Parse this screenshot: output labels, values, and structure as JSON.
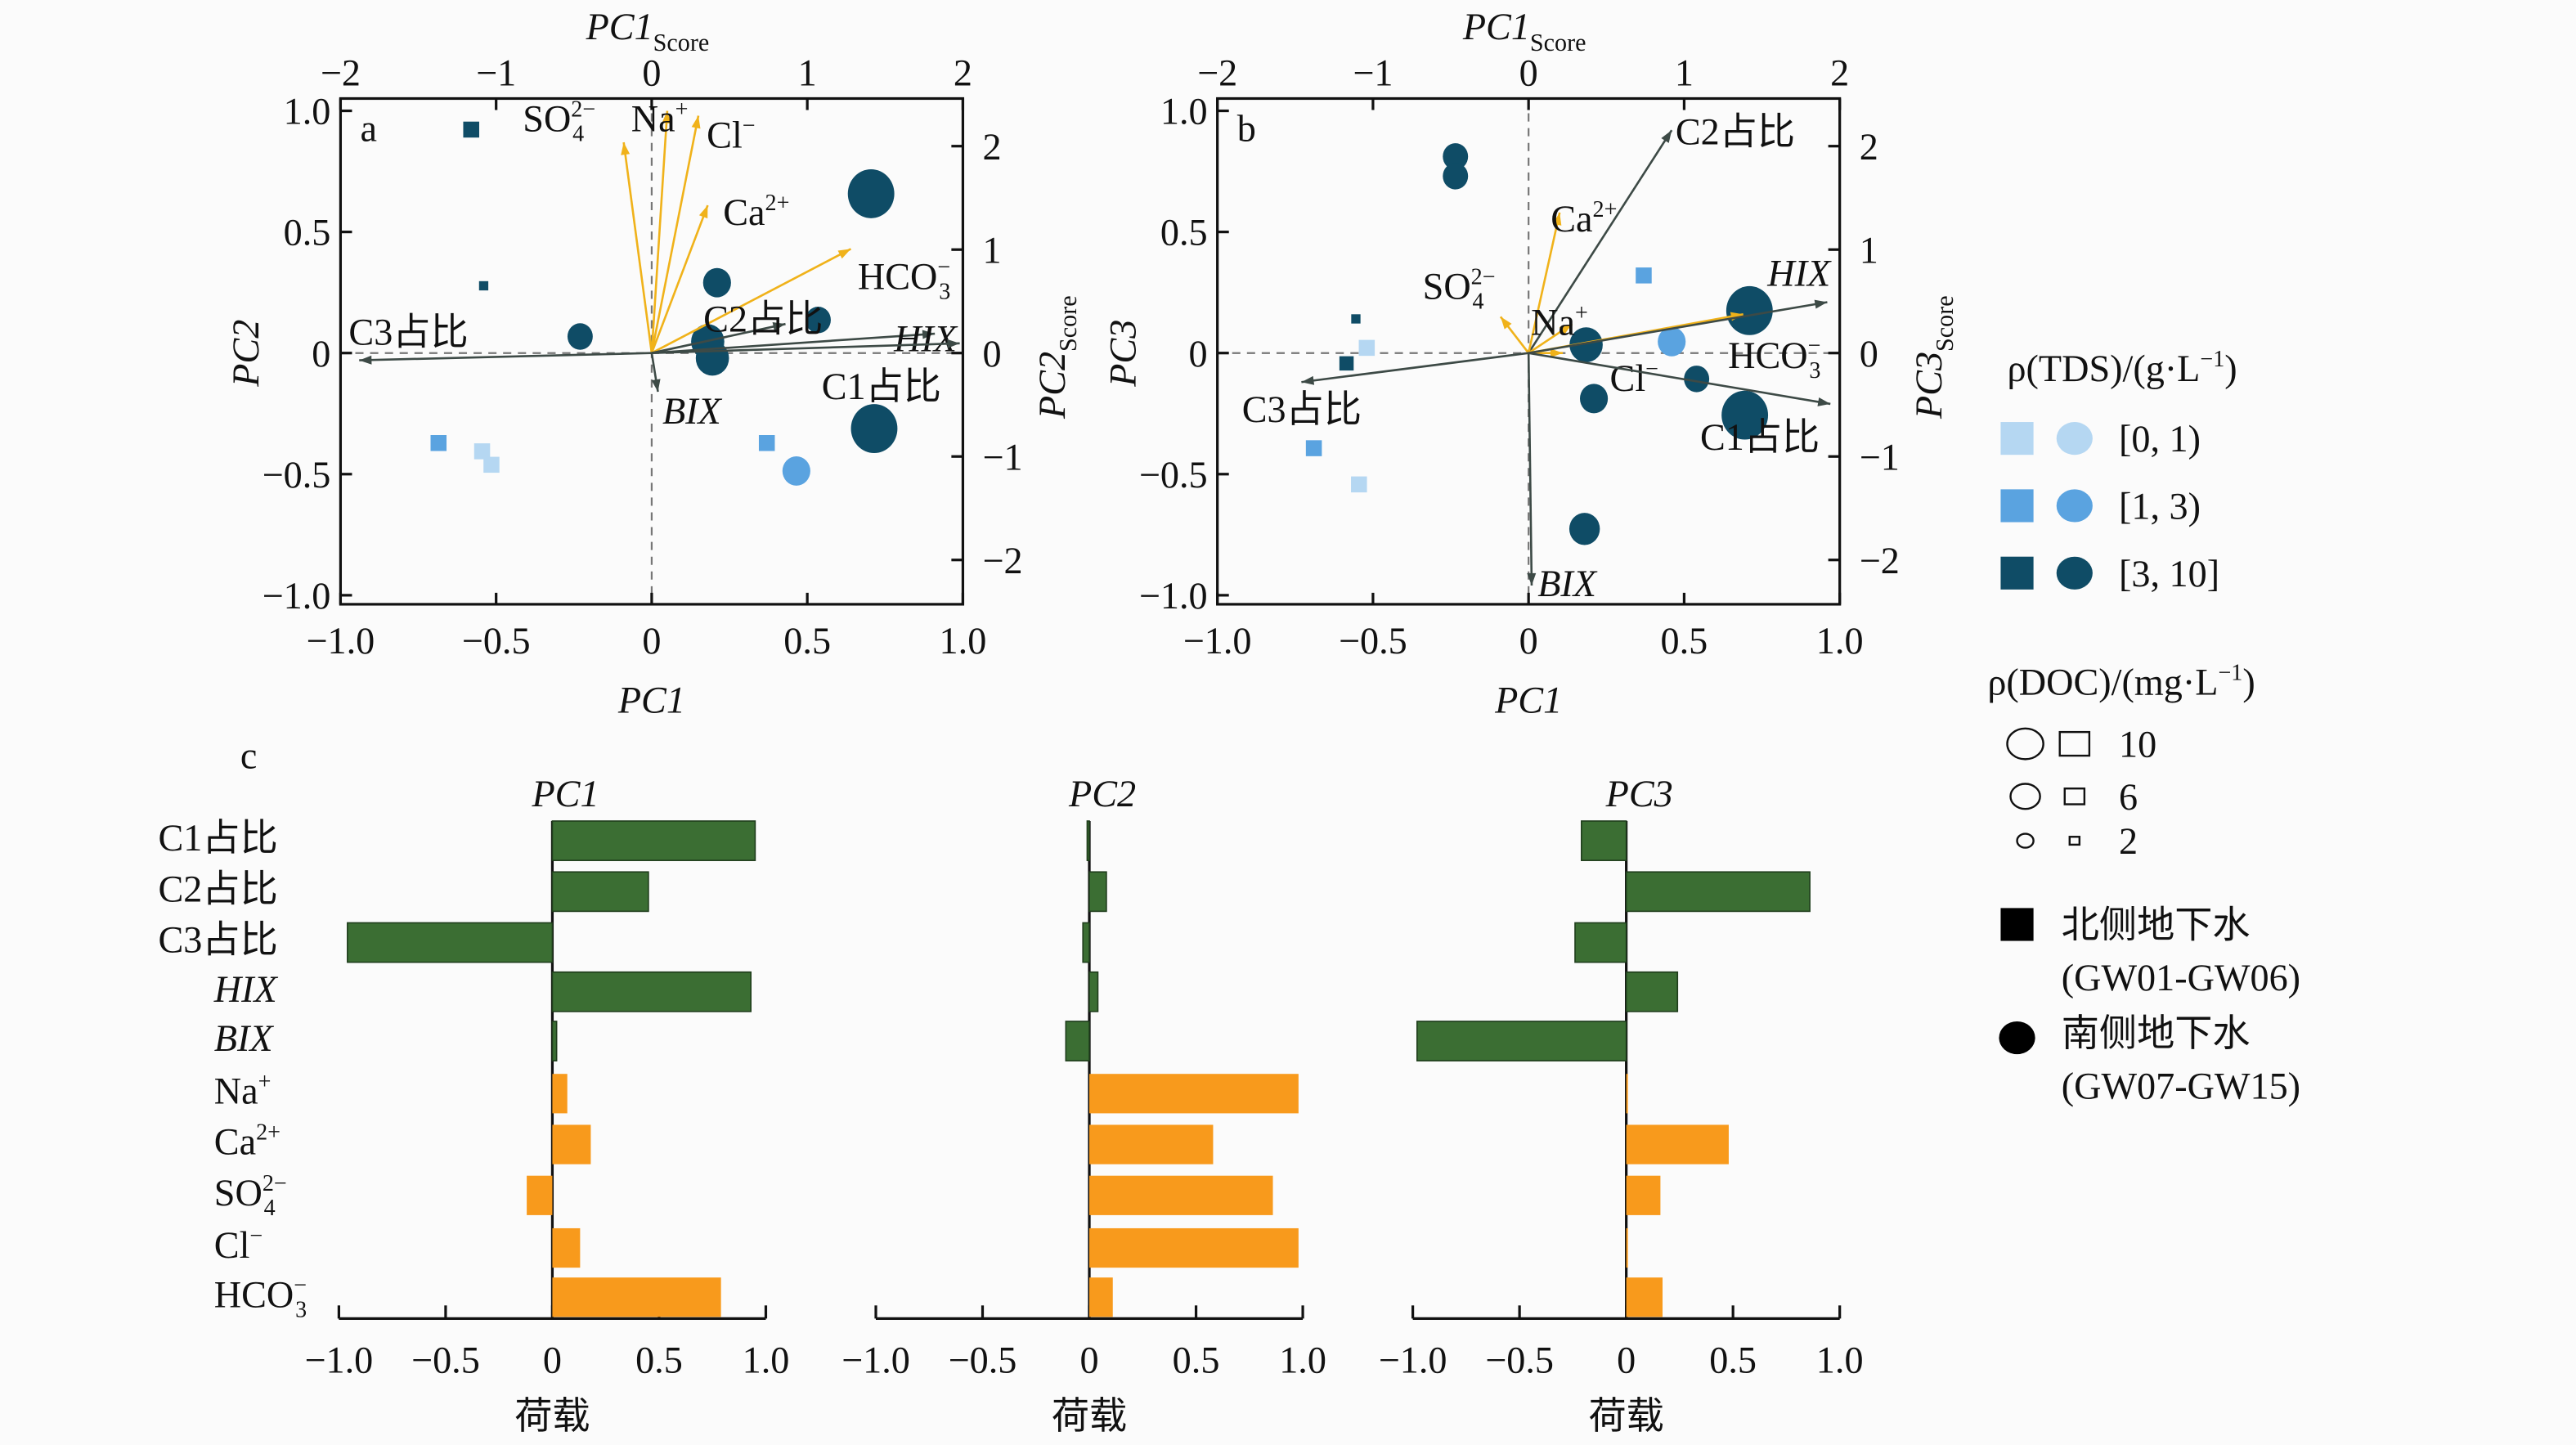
{
  "chart_data": [
    {
      "type": "scatter",
      "panel_label": "a",
      "xlabel": "PC1",
      "ylabel": "PC2",
      "top_label": {
        "base": "PC1",
        "sub": "Score"
      },
      "right_label": {
        "base": "PC2",
        "sub": "Score"
      },
      "xlim": [
        -1,
        1
      ],
      "ylim": [
        -1,
        1
      ],
      "score_xlim": [
        -2,
        2
      ],
      "score_ylim": [
        -2.34,
        2.34
      ],
      "x_ticks": [
        "−1.0",
        "−0.5",
        "0",
        "0.5",
        "1.0"
      ],
      "y_ticks": [
        "1.0",
        "0.5",
        "0",
        "−0.5",
        "−1.0"
      ],
      "top_ticks": [
        "−2",
        "−1",
        "0",
        "1",
        "2"
      ],
      "right_ticks": [
        "2",
        "1",
        "0",
        "−1",
        "−2"
      ],
      "loadings": [
        {
          "label": {
            "base": "SO",
            "sub": "4",
            "sup": "2−"
          },
          "x": -0.09,
          "y": 0.87,
          "group": "ion"
        },
        {
          "label": {
            "base": "Na",
            "sup": "+"
          },
          "x": 0.05,
          "y": 1.0,
          "group": "ion"
        },
        {
          "label": {
            "base": "Cl",
            "sup": "−"
          },
          "x": 0.15,
          "y": 0.98,
          "group": "ion"
        },
        {
          "label": {
            "base": "Ca",
            "sup": "2+"
          },
          "x": 0.18,
          "y": 0.61,
          "group": "ion"
        },
        {
          "label": {
            "base": "HCO",
            "sub": "3",
            "sup": "−"
          },
          "x": 0.64,
          "y": 0.43,
          "group": "ion"
        },
        {
          "label": {
            "base": "C2占比"
          },
          "x": 0.43,
          "y": 0.12,
          "group": "dom"
        },
        {
          "label": {
            "base": "HIX",
            "italic": true
          },
          "x": 0.91,
          "y": 0.08,
          "group": "dom"
        },
        {
          "label": {
            "base": "C1占比"
          },
          "x": 0.99,
          "y": 0.04,
          "group": "dom"
        },
        {
          "label": {
            "base": "C3占比"
          },
          "x": -0.94,
          "y": -0.03,
          "group": "dom"
        },
        {
          "label": {
            "base": "BIX",
            "italic": true
          },
          "x": 0.02,
          "y": -0.16,
          "group": "dom"
        }
      ],
      "scores": [
        {
          "x": -1.16,
          "y": 2.16,
          "tds": "[3, 10]",
          "doc": 6,
          "site": "north"
        },
        {
          "x": -1.08,
          "y": 0.65,
          "tds": "[3, 10]",
          "doc": 2,
          "site": "north"
        },
        {
          "x": -1.37,
          "y": -0.87,
          "tds": "[1, 3)",
          "doc": 6,
          "site": "north"
        },
        {
          "x": -1.09,
          "y": -0.95,
          "tds": "[0, 1)",
          "doc": 6,
          "site": "north"
        },
        {
          "x": -1.03,
          "y": -1.08,
          "tds": "[0, 1)",
          "doc": 6,
          "site": "north"
        },
        {
          "x": 0.74,
          "y": -0.87,
          "tds": "[1, 3)",
          "doc": 6,
          "site": "north"
        },
        {
          "x": -0.46,
          "y": 0.16,
          "tds": "[3, 10]",
          "doc": 6,
          "site": "south"
        },
        {
          "x": 0.93,
          "y": -1.14,
          "tds": "[1, 3)",
          "doc": 7,
          "site": "south"
        },
        {
          "x": 1.41,
          "y": 1.54,
          "tds": "[3, 10]",
          "doc": 14,
          "site": "south"
        },
        {
          "x": 0.42,
          "y": 0.68,
          "tds": "[3, 10]",
          "doc": 7,
          "site": "south"
        },
        {
          "x": 0.36,
          "y": 0.11,
          "tds": "[3, 10]",
          "doc": 9,
          "site": "south"
        },
        {
          "x": 0.39,
          "y": -0.05,
          "tds": "[3, 10]",
          "doc": 9,
          "site": "south"
        },
        {
          "x": 1.07,
          "y": 0.32,
          "tds": "[3, 10]",
          "doc": 6,
          "site": "south"
        },
        {
          "x": 1.43,
          "y": -0.73,
          "tds": "[3, 10]",
          "doc": 14,
          "site": "south"
        }
      ]
    },
    {
      "type": "scatter",
      "panel_label": "b",
      "xlabel": "PC1",
      "ylabel": "PC3",
      "top_label": {
        "base": "PC1",
        "sub": "Score"
      },
      "right_label": {
        "base": "PC3",
        "sub": "Score"
      },
      "xlim": [
        -1,
        1
      ],
      "ylim": [
        -1,
        1
      ],
      "score_xlim": [
        -2,
        2
      ],
      "score_ylim": [
        -2.34,
        2.34
      ],
      "x_ticks": [
        "−1.0",
        "−0.5",
        "0",
        "0.5",
        "1.0"
      ],
      "y_ticks": [
        "1.0",
        "0.5",
        "0",
        "−0.5",
        "−1.0"
      ],
      "top_ticks": [
        "−2",
        "−1",
        "0",
        "1",
        "2"
      ],
      "right_ticks": [
        "2",
        "1",
        "0",
        "−1",
        "−2"
      ],
      "loadings": [
        {
          "label": {
            "base": "C2占比"
          },
          "x": 0.46,
          "y": 0.92,
          "group": "dom"
        },
        {
          "label": {
            "base": "Ca",
            "sup": "2+"
          },
          "x": 0.1,
          "y": 0.58,
          "group": "ion"
        },
        {
          "label": {
            "base": "SO",
            "sub": "4",
            "sup": "2−"
          },
          "x": -0.09,
          "y": 0.15,
          "group": "ion"
        },
        {
          "label": {
            "base": "Na",
            "sup": "+"
          },
          "x": 0.14,
          "y": 0.12,
          "group": "ion"
        },
        {
          "label": {
            "base": "Cl",
            "sup": "−"
          },
          "x": 0.11,
          "y": 0.0,
          "group": "ion"
        },
        {
          "label": {
            "base": "HCO",
            "sub": "3",
            "sup": "−"
          },
          "x": 0.69,
          "y": 0.16,
          "group": "ion"
        },
        {
          "label": {
            "base": "HIX",
            "italic": true
          },
          "x": 0.96,
          "y": 0.21,
          "group": "dom"
        },
        {
          "label": {
            "base": "C1占比"
          },
          "x": 0.97,
          "y": -0.21,
          "group": "dom"
        },
        {
          "label": {
            "base": "C3占比"
          },
          "x": -0.73,
          "y": -0.12,
          "group": "dom"
        },
        {
          "label": {
            "base": "BIX",
            "italic": true
          },
          "x": 0.01,
          "y": -0.96,
          "group": "dom"
        }
      ],
      "scores": [
        {
          "x": -0.47,
          "y": 1.9,
          "tds": "[3, 10]",
          "doc": 6,
          "site": "south"
        },
        {
          "x": -0.47,
          "y": 1.71,
          "tds": "[3, 10]",
          "doc": 6,
          "site": "south"
        },
        {
          "x": -1.04,
          "y": 0.05,
          "tds": "[0, 1)",
          "doc": 6,
          "site": "north"
        },
        {
          "x": -1.11,
          "y": 0.33,
          "tds": "[3, 10]",
          "doc": 2,
          "site": "north"
        },
        {
          "x": -1.17,
          "y": -0.1,
          "tds": "[3, 10]",
          "doc": 5,
          "site": "north"
        },
        {
          "x": -1.38,
          "y": -0.92,
          "tds": "[1, 3)",
          "doc": 6,
          "site": "north"
        },
        {
          "x": -1.09,
          "y": -1.27,
          "tds": "[0, 1)",
          "doc": 6,
          "site": "north"
        },
        {
          "x": 0.74,
          "y": 0.75,
          "tds": "[1, 3)",
          "doc": 6,
          "site": "north"
        },
        {
          "x": 1.42,
          "y": 0.41,
          "tds": "[3, 10]",
          "doc": 14,
          "site": "south"
        },
        {
          "x": 0.92,
          "y": 0.11,
          "tds": "[1, 3)",
          "doc": 7,
          "site": "south"
        },
        {
          "x": 0.37,
          "y": 0.08,
          "tds": "[3, 10]",
          "doc": 9,
          "site": "south"
        },
        {
          "x": 0.42,
          "y": -0.44,
          "tds": "[3, 10]",
          "doc": 7,
          "site": "south"
        },
        {
          "x": 1.08,
          "y": -0.25,
          "tds": "[3, 10]",
          "doc": 6,
          "site": "south"
        },
        {
          "x": 1.39,
          "y": -0.6,
          "tds": "[3, 10]",
          "doc": 14,
          "site": "south"
        },
        {
          "x": 0.36,
          "y": -1.7,
          "tds": "[3, 10]",
          "doc": 8,
          "site": "south"
        }
      ]
    },
    {
      "type": "bar",
      "orientation": "horizontal",
      "panel_label": "c",
      "xlabel": "荷载",
      "xlim": [
        -1,
        1
      ],
      "x_ticks": [
        "−1.0",
        "−0.5",
        "0",
        "0.5",
        "1.0"
      ],
      "categories": [
        {
          "base": "C1占比",
          "group": "dom"
        },
        {
          "base": "C2占比",
          "group": "dom"
        },
        {
          "base": "C3占比",
          "group": "dom"
        },
        {
          "base": "HIX",
          "italic": true,
          "group": "dom"
        },
        {
          "base": "BIX",
          "italic": true,
          "group": "dom"
        },
        {
          "base": "Na",
          "sup": "+",
          "group": "ion"
        },
        {
          "base": "Ca",
          "sup": "2+",
          "group": "ion"
        },
        {
          "base": "SO",
          "sub": "4",
          "sup": "2−",
          "group": "ion"
        },
        {
          "base": "Cl",
          "sup": "−",
          "group": "ion"
        },
        {
          "base": "HCO",
          "sub": "3",
          "sup": "−",
          "group": "ion"
        }
      ],
      "series": [
        {
          "name": "PC1",
          "values": [
            0.95,
            0.45,
            -0.96,
            0.93,
            0.02,
            0.07,
            0.18,
            -0.12,
            0.13,
            0.79
          ]
        },
        {
          "name": "PC2",
          "values": [
            -0.01,
            0.08,
            -0.03,
            0.04,
            -0.11,
            0.98,
            0.58,
            0.86,
            0.98,
            0.11
          ]
        },
        {
          "name": "PC3",
          "values": [
            -0.21,
            0.86,
            -0.24,
            0.24,
            -0.98,
            0.0,
            0.48,
            0.16,
            0.0,
            0.17
          ]
        }
      ]
    }
  ],
  "colors": {
    "tds": {
      "[0, 1)": "#b5d7f2",
      "[1, 3)": "#5aa3e0",
      "[3, 10]": "#0f4c66"
    },
    "dom_bar": "#3b6e33",
    "ion_bar": "#f89a1c",
    "dom_arrow": "#3d4a46",
    "ion_arrow": "#f0b21a"
  },
  "legend": {
    "tds_title": {
      "base": "ρ(TDS)/(g·L",
      "sup": "−1",
      "tail": ")"
    },
    "tds_classes": [
      "[0, 1)",
      "[1, 3)",
      "[3, 10]"
    ],
    "doc_title": {
      "base": "ρ(DOC)/(mg·L",
      "sup": "−1",
      "tail": ")"
    },
    "doc_sizes": [
      "10",
      "6",
      "2"
    ],
    "north": {
      "line1": "北侧地下水",
      "line2": "(GW01-GW06)"
    },
    "south": {
      "line1": "南侧地下水",
      "line2": "(GW07-GW15)"
    }
  }
}
